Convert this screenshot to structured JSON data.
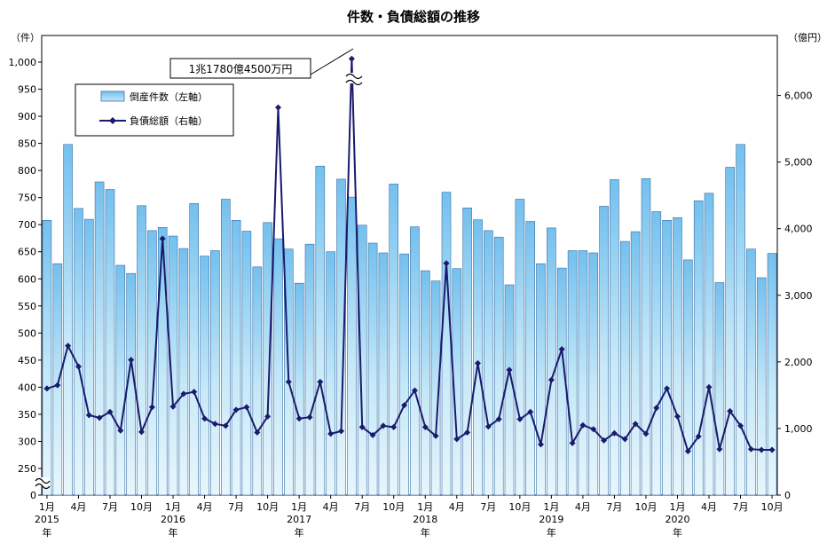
{
  "chart_data": {
    "type": "bar",
    "title": "件数・負債総額の推移",
    "left_unit": "（件）",
    "right_unit": "（億円）",
    "left_ylim": [
      0,
      1050
    ],
    "right_ylim": [
      0,
      6900
    ],
    "left_ticks": [
      0,
      250,
      300,
      350,
      400,
      450,
      500,
      550,
      600,
      650,
      700,
      750,
      800,
      850,
      900,
      950,
      1000
    ],
    "left_tick_labels": [
      "0",
      "250",
      "300",
      "350",
      "400",
      "450",
      "500",
      "550",
      "600",
      "650",
      "700",
      "750",
      "800",
      "850",
      "900",
      "950",
      "1,000"
    ],
    "right_ticks": [
      0,
      1000,
      2000,
      3000,
      4000,
      5000,
      6000
    ],
    "right_tick_labels": [
      "0",
      "1,000",
      "2,000",
      "3,000",
      "4,000",
      "5,000",
      "6,000"
    ],
    "x_month_labels": [
      "1月",
      "4月",
      "7月",
      "10月",
      "1月",
      "4月",
      "7月",
      "10月",
      "1月",
      "4月",
      "7月",
      "10月",
      "1月",
      "4月",
      "7月",
      "10月",
      "1月",
      "4月",
      "7月",
      "10月",
      "1月",
      "4月",
      "7月",
      "10月"
    ],
    "x_year_labels": [
      "2015",
      "2016",
      "2017",
      "2018",
      "2019",
      "2020"
    ],
    "x_year_suffix": "年",
    "legend": [
      {
        "name": "倒産件数（左軸）",
        "color": "#a8d8f5"
      },
      {
        "name": "負債総額（右軸）",
        "color": "#1a1a6e"
      }
    ],
    "annotation": "1兆1780億4500万円",
    "series": [
      {
        "name": "倒産件数（左軸）",
        "values": [
          708,
          628,
          848,
          730,
          710,
          779,
          765,
          625,
          610,
          735,
          689,
          695,
          679,
          656,
          739,
          642,
          652,
          747,
          708,
          688,
          622,
          704,
          674,
          655,
          592,
          664,
          808,
          650,
          784,
          751,
          699,
          666,
          648,
          775,
          646,
          696,
          615,
          596,
          760,
          619,
          731,
          709,
          689,
          677,
          589,
          747,
          706,
          628,
          694,
          620,
          652,
          652,
          648,
          734,
          783,
          669,
          687,
          785,
          724,
          708,
          713,
          635,
          744,
          758,
          593,
          806,
          848,
          655,
          602,
          647
        ]
      },
      {
        "name": "負債総額（右軸）",
        "values": [
          1600,
          1650,
          2240,
          1930,
          1200,
          1160,
          1250,
          970,
          2030,
          950,
          1320,
          3850,
          1330,
          1520,
          1550,
          1150,
          1070,
          1040,
          1280,
          1320,
          940,
          1180,
          5820,
          1700,
          1150,
          1170,
          1700,
          920,
          960,
          6550,
          1020,
          900,
          1040,
          1020,
          1350,
          1570,
          1020,
          890,
          3480,
          840,
          940,
          1980,
          1030,
          1140,
          1880,
          1140,
          1250,
          760,
          1730,
          2190,
          780,
          1050,
          990,
          820,
          930,
          840,
          1070,
          920,
          1310,
          1600,
          1180,
          660,
          880,
          1620,
          690,
          1260,
          1040,
          690,
          680,
          680
        ]
      }
    ]
  }
}
